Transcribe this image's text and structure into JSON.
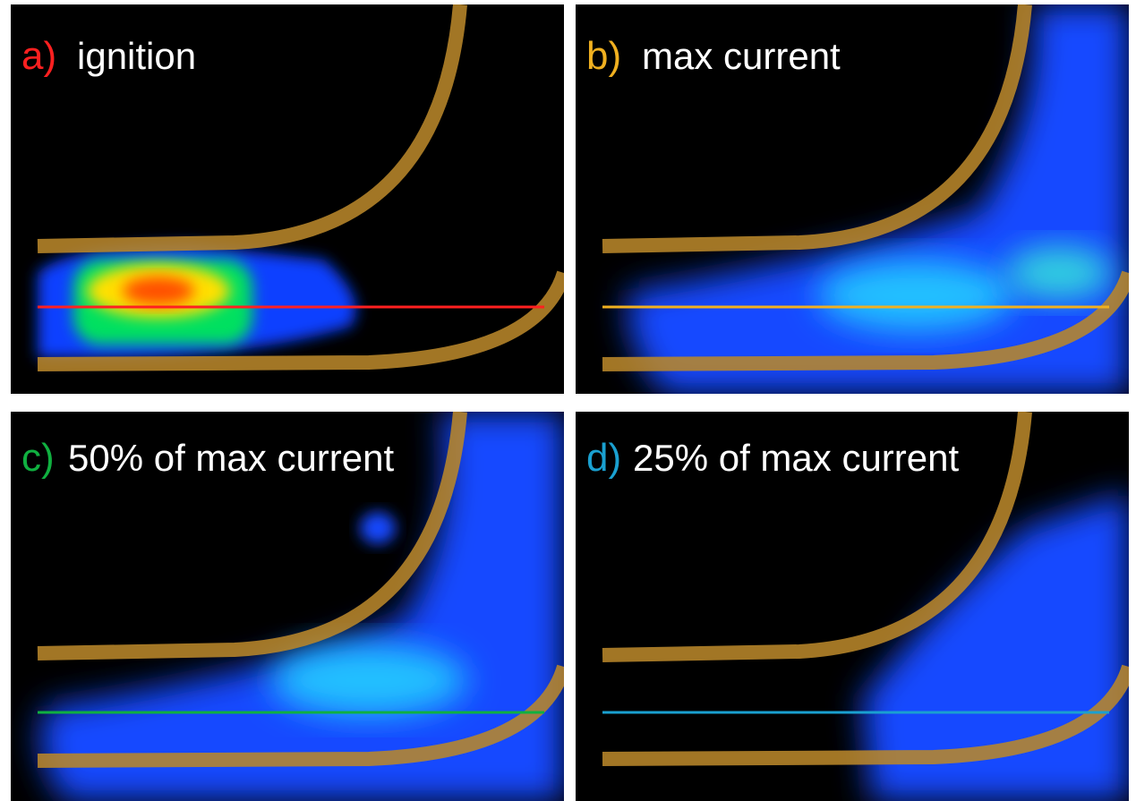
{
  "panels": [
    {
      "letter": "a)",
      "label": "ignition"
    },
    {
      "letter": "b)",
      "label": "max current"
    },
    {
      "letter": "c)",
      "label": "50% of max current"
    },
    {
      "letter": "d)",
      "label": "25% of max current"
    }
  ]
}
